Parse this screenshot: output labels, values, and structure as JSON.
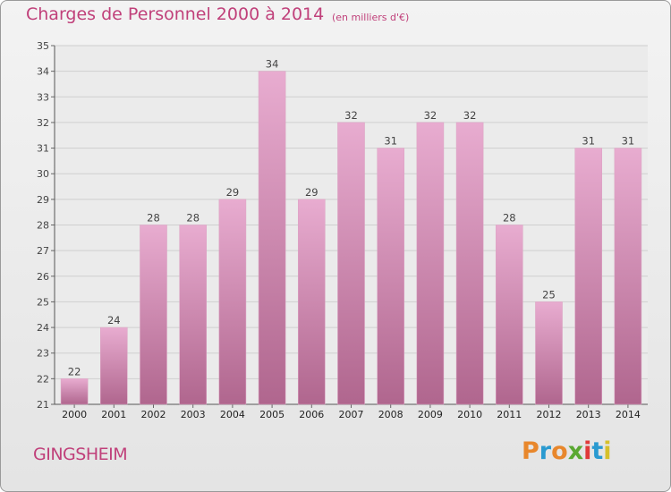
{
  "header": {
    "title": "Charges de Personnel 2000 à 2014",
    "subtitle": "(en milliers d'€)"
  },
  "footer": {
    "place": "GINGSHEIM",
    "logo": [
      "P",
      "r",
      "o",
      "x",
      "i",
      "t",
      "i"
    ],
    "logo_colors": [
      "#e8872c",
      "#2a9ad0",
      "#e8872c",
      "#5aa832",
      "#e03a3a",
      "#2a9ad0",
      "#d6c02a"
    ]
  },
  "colors": {
    "accent": "#c0407a",
    "bar_top": "#e8acd0",
    "bar_bottom": "#b0668e",
    "grid": "#cfcfcf"
  },
  "chart_data": {
    "type": "bar",
    "title": "Charges de Personnel 2000 à 2014",
    "subtitle": "(en milliers d'€)",
    "categories": [
      "2000",
      "2001",
      "2002",
      "2003",
      "2004",
      "2005",
      "2006",
      "2007",
      "2008",
      "2009",
      "2010",
      "2011",
      "2012",
      "2013",
      "2014"
    ],
    "values": [
      22,
      24,
      28,
      28,
      29,
      34,
      29,
      32,
      31,
      32,
      32,
      28,
      25,
      31,
      31
    ],
    "ylim": [
      21,
      35
    ],
    "yticks": [
      "21",
      "22",
      "23",
      "24",
      "25",
      "26",
      "27",
      "28",
      "29",
      "30",
      "31",
      "32",
      "33",
      "34",
      "35"
    ],
    "grid": true,
    "xlabel": "",
    "ylabel": ""
  }
}
